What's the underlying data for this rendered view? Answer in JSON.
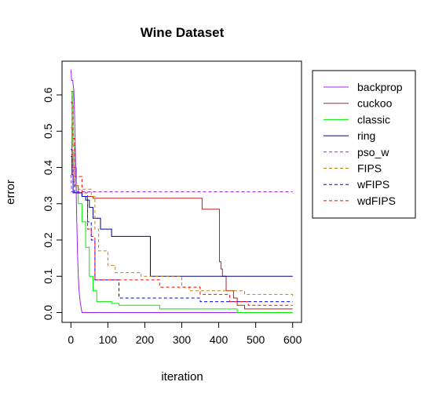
{
  "chart_data": {
    "type": "line",
    "title": "Wine Dataset",
    "xlabel": "iteration",
    "ylabel": "error",
    "xlim": [
      -24,
      624
    ],
    "ylim": [
      -0.027,
      0.693
    ],
    "xticks": [
      0,
      100,
      200,
      300,
      400,
      500,
      600
    ],
    "yticks": [
      0.0,
      0.1,
      0.2,
      0.3,
      0.4,
      0.5,
      0.6
    ],
    "xtick_labels": [
      "0",
      "100",
      "200",
      "300",
      "400",
      "500",
      "600"
    ],
    "ytick_labels": [
      "0.0",
      "0.1",
      "0.2",
      "0.3",
      "0.4",
      "0.5",
      "0.6"
    ],
    "grid": false,
    "legend_position": "right",
    "series": [
      {
        "name": "backprop",
        "color": "#a020f0",
        "dash": "solid",
        "x": [
          0,
          2,
          5,
          8,
          10,
          12,
          14,
          16,
          18,
          20,
          22,
          25,
          28,
          30,
          600
        ],
        "y": [
          0.67,
          0.64,
          0.64,
          0.61,
          0.55,
          0.45,
          0.35,
          0.25,
          0.16,
          0.1,
          0.06,
          0.03,
          0.01,
          0.0,
          0.0
        ]
      },
      {
        "name": "cuckoo",
        "color": "#b22222",
        "dash": "step",
        "x": [
          0,
          3,
          6,
          10,
          20,
          30,
          60,
          80,
          350,
          355,
          400,
          402,
          406,
          410,
          420,
          440,
          450,
          470,
          600
        ],
        "y": [
          0.51,
          0.44,
          0.4,
          0.35,
          0.33,
          0.32,
          0.315,
          0.315,
          0.315,
          0.285,
          0.285,
          0.14,
          0.12,
          0.1,
          0.06,
          0.04,
          0.02,
          0.01,
          0.01
        ]
      },
      {
        "name": "classic",
        "color": "#00ee00",
        "dash": "step",
        "x": [
          0,
          3,
          6,
          10,
          15,
          20,
          30,
          40,
          50,
          60,
          70,
          110,
          130,
          240,
          450,
          600
        ],
        "y": [
          0.47,
          0.61,
          0.46,
          0.4,
          0.33,
          0.3,
          0.25,
          0.18,
          0.1,
          0.06,
          0.03,
          0.025,
          0.02,
          0.01,
          0.0,
          0.0
        ]
      },
      {
        "name": "ring",
        "color": "#00008b",
        "dash": "step",
        "x": [
          0,
          3,
          6,
          15,
          30,
          40,
          50,
          60,
          80,
          110,
          215,
          600
        ],
        "y": [
          0.43,
          0.38,
          0.33,
          0.33,
          0.32,
          0.31,
          0.29,
          0.26,
          0.23,
          0.21,
          0.1,
          0.1
        ]
      },
      {
        "name": "pso_w",
        "color": "#a020f0",
        "dash": "dashed",
        "x": [
          0,
          2,
          4,
          600
        ],
        "y": [
          0.38,
          0.333,
          0.333,
          0.333
        ]
      },
      {
        "name": "FIPS",
        "color": "#b8860b",
        "dash": "dashed-step",
        "x": [
          0,
          3,
          6,
          10,
          20,
          40,
          55,
          65,
          75,
          100,
          120,
          190,
          300,
          320,
          470,
          600
        ],
        "y": [
          0.61,
          0.5,
          0.38,
          0.35,
          0.34,
          0.34,
          0.32,
          0.23,
          0.17,
          0.13,
          0.11,
          0.1,
          0.07,
          0.06,
          0.05,
          0.04
        ]
      },
      {
        "name": "wFIPS",
        "color": "#0000ff",
        "dash": "dashed-step",
        "x": [
          0,
          3,
          6,
          10,
          30,
          45,
          55,
          65,
          130,
          200,
          350,
          600
        ],
        "y": [
          0.45,
          0.4,
          0.36,
          0.33,
          0.32,
          0.25,
          0.2,
          0.09,
          0.04,
          0.04,
          0.03,
          0.03
        ]
      },
      {
        "name": "wdFIPS",
        "color": "#ff0000",
        "dash": "dashed-step",
        "x": [
          0,
          3,
          6,
          10,
          30,
          45,
          55,
          65,
          160,
          240,
          350,
          430,
          480,
          600
        ],
        "y": [
          0.58,
          0.57,
          0.48,
          0.375,
          0.33,
          0.23,
          0.21,
          0.09,
          0.09,
          0.07,
          0.05,
          0.03,
          0.02,
          0.02
        ]
      }
    ]
  }
}
